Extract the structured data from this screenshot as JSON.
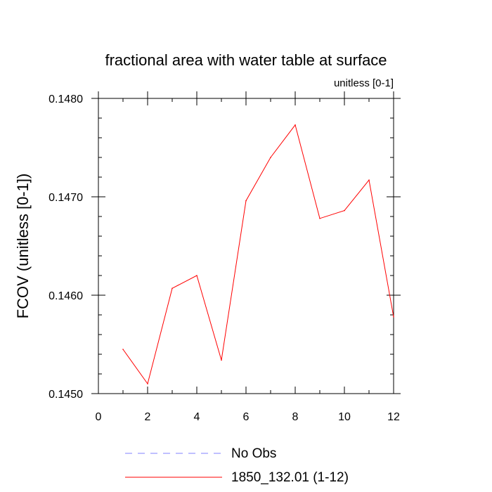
{
  "chart_data": {
    "type": "line",
    "title": "fractional area with water table at surface",
    "subtitle": "unitless [0-1]",
    "xlabel": "",
    "ylabel": "FCOV  (unitless [0-1])",
    "xlim": [
      0,
      12
    ],
    "ylim": [
      0.145,
      0.148
    ],
    "x_ticks": [
      0,
      2,
      4,
      6,
      8,
      10,
      12
    ],
    "x_tick_labels": [
      "0",
      "2",
      "4",
      "6",
      "8",
      "10",
      "12"
    ],
    "y_ticks": [
      0.145,
      0.146,
      0.147,
      0.148
    ],
    "y_tick_labels": [
      "0.1450",
      "0.1460",
      "0.1470",
      "0.1480"
    ],
    "grid": false,
    "legend_position": "bottom",
    "series": [
      {
        "name": "No Obs",
        "color": "#8080ff",
        "style": "dashed",
        "x": [],
        "y": []
      },
      {
        "name": "1850_132.01 (1-12)",
        "color": "#ff0000",
        "style": "solid",
        "x": [
          1,
          2,
          3,
          4,
          5,
          6,
          7,
          8,
          9,
          10,
          11,
          12
        ],
        "y": [
          0.14545,
          0.1451,
          0.14607,
          0.1462,
          0.14534,
          0.14696,
          0.1474,
          0.14773,
          0.14678,
          0.14686,
          0.14717,
          0.14578
        ]
      }
    ]
  }
}
